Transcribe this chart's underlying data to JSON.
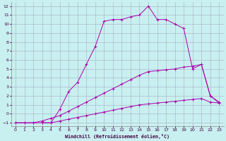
{
  "xlabel": "Windchill (Refroidissement éolien,°C)",
  "bg_color": "#c8f0f0",
  "grid_color": "#b0b8d0",
  "line_color": "#aa00aa",
  "xlim": [
    -0.5,
    23.5
  ],
  "ylim": [
    -1.4,
    12.4
  ],
  "xticks": [
    0,
    1,
    2,
    3,
    4,
    5,
    6,
    7,
    8,
    9,
    10,
    11,
    12,
    13,
    14,
    15,
    16,
    17,
    18,
    19,
    20,
    21,
    22,
    23
  ],
  "yticks": [
    -1,
    0,
    1,
    2,
    3,
    4,
    5,
    6,
    7,
    8,
    9,
    10,
    11,
    12
  ],
  "s1x": [
    0,
    1,
    2,
    3,
    4,
    5,
    6,
    7,
    8,
    9,
    10,
    11,
    12,
    13,
    14,
    15,
    16,
    17,
    18,
    19,
    20,
    21,
    22,
    23
  ],
  "s1y": [
    -1,
    -1,
    -1,
    -1,
    -1,
    -0.8,
    -0.6,
    -0.4,
    -0.2,
    0.0,
    0.2,
    0.4,
    0.6,
    0.8,
    1.0,
    1.1,
    1.2,
    1.3,
    1.4,
    1.5,
    1.6,
    1.7,
    1.3,
    1.2
  ],
  "s2x": [
    0,
    1,
    2,
    3,
    4,
    5,
    6,
    7,
    8,
    9,
    10,
    11,
    12,
    13,
    14,
    15,
    16,
    17,
    18,
    19,
    20,
    21,
    22,
    23
  ],
  "s2y": [
    -1,
    -1,
    -1,
    -0.8,
    -0.5,
    -0.2,
    0.3,
    0.8,
    1.3,
    1.8,
    2.3,
    2.8,
    3.3,
    3.8,
    4.3,
    4.7,
    4.8,
    4.9,
    5.0,
    5.2,
    5.3,
    5.5,
    2.0,
    1.3
  ],
  "s3x": [
    3,
    4,
    5,
    6,
    7,
    8,
    9,
    10,
    11,
    12,
    13,
    14,
    15,
    16,
    17,
    18,
    19,
    20,
    21,
    22,
    23
  ],
  "s3y": [
    -1,
    -1,
    0.5,
    2.5,
    3.5,
    5.5,
    7.5,
    10.3,
    10.5,
    10.5,
    10.8,
    11.0,
    12.0,
    10.5,
    10.5,
    10.0,
    9.5,
    5.0,
    5.5,
    2.0,
    1.2
  ]
}
